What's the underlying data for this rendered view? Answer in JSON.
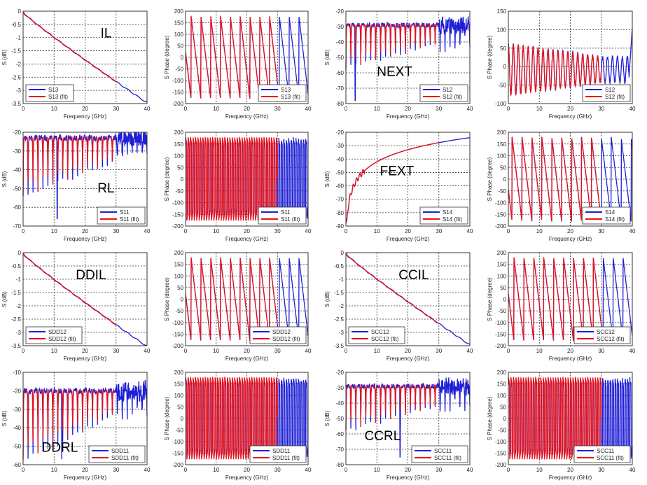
{
  "figure": {
    "description": "4x4 grid of S-parameter magnitude and phase plots with measured and fitted traces"
  },
  "legend_colors": {
    "measured": "#1f1fd6",
    "fit": "#e8121a"
  },
  "chart_data": [
    {
      "id": "il-mag",
      "type": "line",
      "kind": "loss",
      "title": "",
      "annotation": "IL",
      "annotation_pos": [
        25,
        -1
      ],
      "xlabel": "Frequency (GHz)",
      "ylabel": "S (dB)",
      "xlim": [
        0,
        40
      ],
      "ylim": [
        -3.5,
        0
      ],
      "xticks": [
        0,
        10,
        20,
        30,
        40
      ],
      "yticks": [
        0,
        -0.5,
        -1,
        -1.5,
        -2,
        -2.5,
        -3,
        -3.5
      ],
      "grid": true,
      "legend": "bottom-left",
      "params": {
        "end": -3.42
      },
      "series": [
        {
          "name": "S13",
          "color": "#1f1fd6",
          "x_range": [
            0,
            40
          ]
        },
        {
          "name": "S13 (fit)",
          "color": "#e8121a",
          "x_range": [
            0,
            30
          ]
        }
      ]
    },
    {
      "id": "il-phase",
      "type": "line",
      "kind": "phase",
      "annotation": "",
      "xlabel": "Frequency (GHz)",
      "ylabel": "S Phase (degree)",
      "xlim": [
        0,
        40
      ],
      "ylim": [
        -200,
        200
      ],
      "xticks": [
        0,
        10,
        20,
        30,
        40
      ],
      "yticks": [
        200,
        150,
        100,
        50,
        0,
        -50,
        -100,
        -150,
        -200
      ],
      "grid": true,
      "legend": "bottom-right",
      "params": {
        "period": 3.2,
        "offset": 1.4
      },
      "series": [
        {
          "name": "S13",
          "color": "#1f1fd6",
          "x_range": [
            0,
            40
          ]
        },
        {
          "name": "S13 (fit)",
          "color": "#e8121a",
          "x_range": [
            0,
            30
          ]
        }
      ]
    },
    {
      "id": "next-mag",
      "type": "line",
      "kind": "ripple",
      "annotation": "NEXT",
      "annotation_pos": [
        10,
        -62
      ],
      "xlabel": "Frequency (GHz)",
      "ylabel": "S (dB)",
      "xlim": [
        0,
        40
      ],
      "ylim": [
        -80,
        -20
      ],
      "xticks": [
        0,
        10,
        20,
        30,
        40
      ],
      "yticks": [
        -20,
        -30,
        -40,
        -50,
        -60,
        -70,
        -80
      ],
      "grid": true,
      "legend": "bottom-right",
      "params": {
        "top": -29,
        "depth0": -57,
        "depth1": -41,
        "period": 1.6,
        "spike": [
          3,
          -78
        ]
      },
      "series": [
        {
          "name": "S12",
          "color": "#1f1fd6",
          "x_range": [
            0,
            40
          ]
        },
        {
          "name": "S12 (fit)",
          "color": "#e8121a",
          "x_range": [
            0,
            30
          ]
        }
      ]
    },
    {
      "id": "next-phase",
      "type": "line",
      "kind": "oscill",
      "annotation": "",
      "xlabel": "Frequency (GHz)",
      "ylabel": "S Phase (degree)",
      "xlim": [
        0,
        40
      ],
      "ylim": [
        -100,
        150
      ],
      "xticks": [
        0,
        10,
        20,
        30,
        40
      ],
      "yticks": [
        150,
        100,
        50,
        0,
        -50,
        -100
      ],
      "grid": true,
      "legend": "bottom-right",
      "params": {
        "amp0": 70,
        "amp1": 35,
        "period": 1.6,
        "end_rise": 125
      },
      "series": [
        {
          "name": "S12",
          "color": "#1f1fd6",
          "x_range": [
            0,
            40
          ]
        },
        {
          "name": "S12 (fit)",
          "color": "#e8121a",
          "x_range": [
            0,
            30
          ]
        }
      ]
    },
    {
      "id": "rl-mag",
      "type": "line",
      "kind": "ripple",
      "annotation": "RL",
      "annotation_pos": [
        24,
        -52
      ],
      "xlabel": "Frequency (GHz)",
      "ylabel": "S (dB)",
      "xlim": [
        0,
        40
      ],
      "ylim": [
        -70,
        -20
      ],
      "xticks": [
        0,
        10,
        20,
        30,
        40
      ],
      "yticks": [
        -20,
        -30,
        -40,
        -50,
        -60,
        -70
      ],
      "grid": true,
      "legend": "bottom-right",
      "params": {
        "top": -23,
        "depth0": -54,
        "depth1": -35,
        "period": 1.6,
        "spike": [
          11,
          -66
        ]
      },
      "series": [
        {
          "name": "S11",
          "color": "#1f1fd6",
          "x_range": [
            0,
            40
          ]
        },
        {
          "name": "S11 (fit)",
          "color": "#e8121a",
          "x_range": [
            0,
            30
          ]
        }
      ]
    },
    {
      "id": "rl-phase",
      "type": "line",
      "kind": "dense",
      "annotation": "",
      "xlabel": "Frequency (GHz)",
      "ylabel": "S Phase (degree)",
      "xlim": [
        0,
        40
      ],
      "ylim": [
        -200,
        200
      ],
      "xticks": [
        0,
        10,
        20,
        30,
        40
      ],
      "yticks": [
        200,
        150,
        100,
        50,
        0,
        -50,
        -100,
        -150,
        -200
      ],
      "grid": true,
      "legend": "bottom-right",
      "params": {
        "period": 0.8
      },
      "series": [
        {
          "name": "S11",
          "color": "#1f1fd6",
          "x_range": [
            0,
            40
          ]
        },
        {
          "name": "S11 (fit)",
          "color": "#e8121a",
          "x_range": [
            0,
            30
          ]
        }
      ]
    },
    {
      "id": "fext-mag",
      "type": "line",
      "kind": "rise",
      "annotation": "FEXT",
      "annotation_pos": [
        11,
        -52
      ],
      "xlabel": "Frequency (GHz)",
      "ylabel": "S (dB)",
      "xlim": [
        0,
        40
      ],
      "ylim": [
        -90,
        -20
      ],
      "xticks": [
        0,
        10,
        20,
        30,
        40
      ],
      "yticks": [
        -20,
        -30,
        -40,
        -50,
        -60,
        -70,
        -80,
        -90
      ],
      "grid": true,
      "legend": "bottom-right",
      "params": {
        "end": -24
      },
      "series": [
        {
          "name": "S14",
          "color": "#1f1fd6",
          "x_range": [
            0,
            40
          ]
        },
        {
          "name": "S14 (fit)",
          "color": "#e8121a",
          "x_range": [
            0,
            30
          ]
        }
      ]
    },
    {
      "id": "fext-phase",
      "type": "line",
      "kind": "phase",
      "annotation": "",
      "xlabel": "Frequency (GHz)",
      "ylabel": "S Phase (degree)",
      "xlim": [
        0,
        40
      ],
      "ylim": [
        -200,
        200
      ],
      "xticks": [
        0,
        10,
        20,
        30,
        40
      ],
      "yticks": [
        200,
        150,
        100,
        50,
        0,
        -50,
        -100,
        -150,
        -200
      ],
      "grid": true,
      "legend": "bottom-right",
      "params": {
        "period": 3.2,
        "offset": 2.0
      },
      "series": [
        {
          "name": "S14",
          "color": "#1f1fd6",
          "x_range": [
            0,
            40
          ]
        },
        {
          "name": "S14 (fit)",
          "color": "#e8121a",
          "x_range": [
            0,
            30
          ]
        }
      ]
    },
    {
      "id": "ddil-mag",
      "type": "line",
      "kind": "loss",
      "annotation": "DDIL",
      "annotation_pos": [
        17,
        -1
      ],
      "xlabel": "Frequency (GHz)",
      "ylabel": "S (dB)",
      "xlim": [
        0,
        40
      ],
      "ylim": [
        -3.5,
        0
      ],
      "xticks": [
        0,
        10,
        20,
        30,
        40
      ],
      "yticks": [
        0,
        -0.5,
        -1,
        -1.5,
        -2,
        -2.5,
        -3,
        -3.5
      ],
      "grid": true,
      "legend": "bottom-left",
      "params": {
        "end": -3.48
      },
      "series": [
        {
          "name": "SDD12",
          "color": "#1f1fd6",
          "x_range": [
            0,
            40
          ]
        },
        {
          "name": "SDD12 (fit)",
          "color": "#e8121a",
          "x_range": [
            0,
            30
          ]
        }
      ]
    },
    {
      "id": "ddil-phase",
      "type": "line",
      "kind": "phase",
      "annotation": "",
      "xlabel": "Frequency (GHz)",
      "ylabel": "S Phase (degree)",
      "xlim": [
        0,
        40
      ],
      "ylim": [
        -200,
        200
      ],
      "xticks": [
        0,
        10,
        20,
        30,
        40
      ],
      "yticks": [
        200,
        150,
        100,
        50,
        0,
        -50,
        -100,
        -150,
        -200
      ],
      "grid": true,
      "legend": "bottom-right",
      "params": {
        "period": 3.2,
        "offset": 1.4
      },
      "series": [
        {
          "name": "SDD12",
          "color": "#1f1fd6",
          "x_range": [
            0,
            40
          ]
        },
        {
          "name": "SDD12 (fit)",
          "color": "#e8121a",
          "x_range": [
            0,
            30
          ]
        }
      ]
    },
    {
      "id": "ccil-mag",
      "type": "line",
      "kind": "loss",
      "annotation": "CCIL",
      "annotation_pos": [
        17,
        -1
      ],
      "xlabel": "Frequency (GHz)",
      "ylabel": "S (dB)",
      "xlim": [
        0,
        40
      ],
      "ylim": [
        -3.5,
        0
      ],
      "xticks": [
        0,
        10,
        20,
        30,
        40
      ],
      "yticks": [
        0,
        -0.5,
        -1,
        -1.5,
        -2,
        -2.5,
        -3,
        -3.5
      ],
      "grid": true,
      "legend": "bottom-left",
      "params": {
        "end": -3.42
      },
      "series": [
        {
          "name": "SCC12",
          "color": "#1f1fd6",
          "x_range": [
            0,
            40
          ]
        },
        {
          "name": "SCC12 (fit)",
          "color": "#e8121a",
          "x_range": [
            0,
            30
          ]
        }
      ]
    },
    {
      "id": "ccil-phase",
      "type": "line",
      "kind": "phase",
      "annotation": "",
      "xlabel": "Frequency (GHz)",
      "ylabel": "S Phase (degree)",
      "xlim": [
        0,
        40
      ],
      "ylim": [
        -200,
        200
      ],
      "xticks": [
        0,
        10,
        20,
        30,
        40
      ],
      "yticks": [
        200,
        150,
        100,
        50,
        0,
        -50,
        -100,
        -150,
        -200
      ],
      "grid": true,
      "legend": "bottom-right",
      "params": {
        "period": 3.2,
        "offset": 1.4
      },
      "series": [
        {
          "name": "SCC12",
          "color": "#1f1fd6",
          "x_range": [
            0,
            40
          ]
        },
        {
          "name": "SCC12 (fit)",
          "color": "#e8121a",
          "x_range": [
            0,
            30
          ]
        }
      ]
    },
    {
      "id": "ddrl-mag",
      "type": "line",
      "kind": "ripple",
      "annotation": "DDRL",
      "annotation_pos": [
        6,
        -53
      ],
      "xlabel": "Frequency (GHz)",
      "ylabel": "S (dB)",
      "xlim": [
        0,
        40
      ],
      "ylim": [
        -60,
        -10
      ],
      "xticks": [
        0,
        10,
        20,
        30,
        40
      ],
      "yticks": [
        -10,
        -20,
        -30,
        -40,
        -50,
        -60
      ],
      "grid": true,
      "legend": "bottom-right",
      "params": {
        "top": -20,
        "depth0": -58,
        "depth1": -32,
        "period": 1.6,
        "spike": [
          12.5,
          -57
        ]
      },
      "series": [
        {
          "name": "SDD11",
          "color": "#1f1fd6",
          "x_range": [
            0,
            40
          ]
        },
        {
          "name": "SDD11 (fit)",
          "color": "#e8121a",
          "x_range": [
            0,
            30
          ]
        }
      ]
    },
    {
      "id": "ddrl-phase",
      "type": "line",
      "kind": "dense",
      "annotation": "",
      "xlabel": "Frequency (GHz)",
      "ylabel": "S Phase (degree)",
      "xlim": [
        0,
        40
      ],
      "ylim": [
        -200,
        200
      ],
      "xticks": [
        0,
        10,
        20,
        30,
        40
      ],
      "yticks": [
        200,
        150,
        100,
        50,
        0,
        -50,
        -100,
        -150,
        -200
      ],
      "grid": true,
      "legend": "bottom-right",
      "params": {
        "period": 0.8
      },
      "series": [
        {
          "name": "SDD11",
          "color": "#1f1fd6",
          "x_range": [
            0,
            40
          ]
        },
        {
          "name": "SDD11 (fit)",
          "color": "#e8121a",
          "x_range": [
            0,
            30
          ]
        }
      ]
    },
    {
      "id": "ccrl-mag",
      "type": "line",
      "kind": "ripple",
      "annotation": "CCRL",
      "annotation_pos": [
        6,
        -64
      ],
      "xlabel": "Frequency (GHz)",
      "ylabel": "S (dB)",
      "xlim": [
        0,
        40
      ],
      "ylim": [
        -80,
        -20
      ],
      "xticks": [
        0,
        10,
        20,
        30,
        40
      ],
      "yticks": [
        -20,
        -30,
        -40,
        -50,
        -60,
        -70,
        -80
      ],
      "grid": true,
      "legend": "bottom-right",
      "params": {
        "top": -29,
        "depth0": -58,
        "depth1": -42,
        "period": 1.6,
        "spike": [
          17.5,
          -75
        ]
      },
      "series": [
        {
          "name": "SCC11",
          "color": "#1f1fd6",
          "x_range": [
            0,
            40
          ]
        },
        {
          "name": "SCC11 (fit)",
          "color": "#e8121a",
          "x_range": [
            0,
            30
          ]
        }
      ]
    },
    {
      "id": "ccrl-phase",
      "type": "line",
      "kind": "dense",
      "annotation": "",
      "xlabel": "Frequency (GHz)",
      "ylabel": "S Phase (degree)",
      "xlim": [
        0,
        40
      ],
      "ylim": [
        -200,
        200
      ],
      "xticks": [
        0,
        10,
        20,
        30,
        40
      ],
      "yticks": [
        200,
        150,
        100,
        50,
        0,
        -50,
        -100,
        -150,
        -200
      ],
      "grid": true,
      "legend": "bottom-right",
      "params": {
        "period": 0.8
      },
      "series": [
        {
          "name": "SCC11",
          "color": "#1f1fd6",
          "x_range": [
            0,
            40
          ]
        },
        {
          "name": "SCC11 (fit)",
          "color": "#e8121a",
          "x_range": [
            0,
            30
          ]
        }
      ]
    }
  ]
}
